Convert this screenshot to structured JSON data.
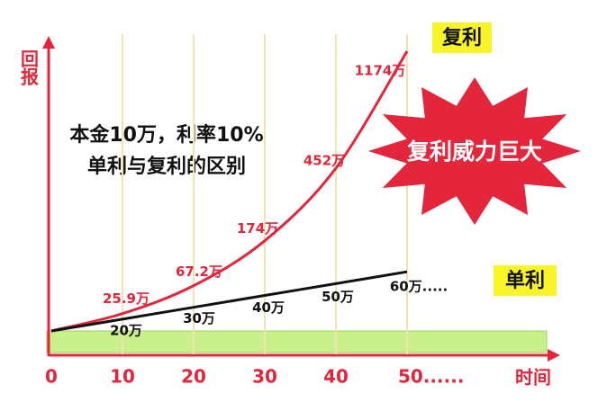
{
  "chart_data": {
    "type": "line",
    "title": "本金10万，利率10%",
    "subtitle": "单利与复利的区别",
    "annotation": "复利威力巨大",
    "ylabel": "回报",
    "xlabel": "时间",
    "xlim": [
      0,
      70
    ],
    "xticks": [
      0,
      10,
      20,
      30,
      40,
      {
        "value": 50,
        "label": "50......"
      }
    ],
    "grid": true,
    "yscale": "sqrt",
    "ylim": [
      10,
      1300
    ],
    "y2lim": [
      10,
      260
    ],
    "series": [
      {
        "name": "复利",
        "color": "#e3263b",
        "x": [
          0,
          10,
          20,
          30,
          40,
          50
        ],
        "values": [
          10,
          25.9,
          67.2,
          174,
          452,
          1174
        ],
        "value_labels": [
          null,
          "25.9万",
          "67.2万",
          "174万",
          "452万",
          "1174万"
        ]
      },
      {
        "name": "单利",
        "color": "#111111",
        "axis": "y2",
        "x": [
          0,
          10,
          20,
          30,
          40,
          50
        ],
        "values": [
          10,
          20,
          30,
          40,
          50,
          60
        ],
        "value_labels": [
          null,
          "20万",
          "30万",
          "40万",
          "50万",
          "60万....."
        ]
      }
    ]
  }
}
